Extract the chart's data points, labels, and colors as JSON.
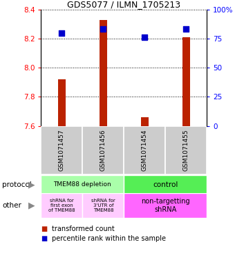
{
  "title": "GDS5077 / ILMN_1705213",
  "samples": [
    "GSM1071457",
    "GSM1071456",
    "GSM1071454",
    "GSM1071455"
  ],
  "red_values": [
    7.92,
    8.33,
    7.66,
    8.21
  ],
  "blue_percentiles": [
    80,
    83,
    76,
    83
  ],
  "ylim": [
    7.6,
    8.4
  ],
  "yticks": [
    7.6,
    7.8,
    8.0,
    8.2,
    8.4
  ],
  "right_yticks": [
    0,
    25,
    50,
    75,
    100
  ],
  "right_ytick_labels": [
    "0",
    "25",
    "50",
    "75",
    "100%"
  ],
  "bar_width": 0.18,
  "bar_color": "#BB2200",
  "dot_color": "#0000CC",
  "dot_size": 28,
  "protocol_label_left": "TMEM88 depletion",
  "protocol_label_right": "control",
  "protocol_color_left": "#AAFFAA",
  "protocol_color_right": "#55EE55",
  "other_label_0": "shRNA for\nfirst exon\nof TMEM88",
  "other_label_1": "shRNA for\n3'UTR of\nTMEM88",
  "other_label_23": "non-targetting\nshRNA",
  "other_color_01": "#FFCCFF",
  "other_color_23": "#FF66FF",
  "sample_box_color": "#CCCCCC",
  "legend_red": "transformed count",
  "legend_blue": "percentile rank within the sample",
  "title_fontsize": 9,
  "tick_fontsize": 7.5,
  "sample_fontsize": 6.5,
  "annot_fontsize": 6.5,
  "legend_fontsize": 7
}
